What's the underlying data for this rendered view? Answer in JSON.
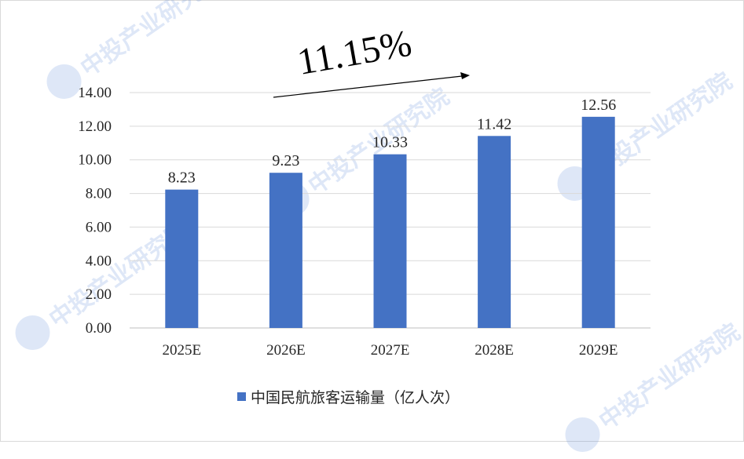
{
  "chart_data": {
    "type": "bar",
    "categories": [
      "2025E",
      "2026E",
      "2027E",
      "2028E",
      "2029E"
    ],
    "series": [
      {
        "name": "中国民航旅客运输量（亿人次）",
        "values": [
          8.23,
          9.23,
          10.33,
          11.42,
          12.56
        ]
      }
    ],
    "data_labels": [
      "8.23",
      "9.23",
      "10.33",
      "11.42",
      "12.56"
    ],
    "y_ticks": [
      "0.00",
      "2.00",
      "4.00",
      "6.00",
      "8.00",
      "10.00",
      "12.00",
      "14.00"
    ],
    "ylim": [
      0,
      14
    ],
    "grid": true,
    "legend_position": "bottom",
    "bar_color": "#4472c4",
    "annotation": {
      "growth_rate": "11.15%"
    }
  },
  "watermark": {
    "text": "中投产业研究院"
  }
}
